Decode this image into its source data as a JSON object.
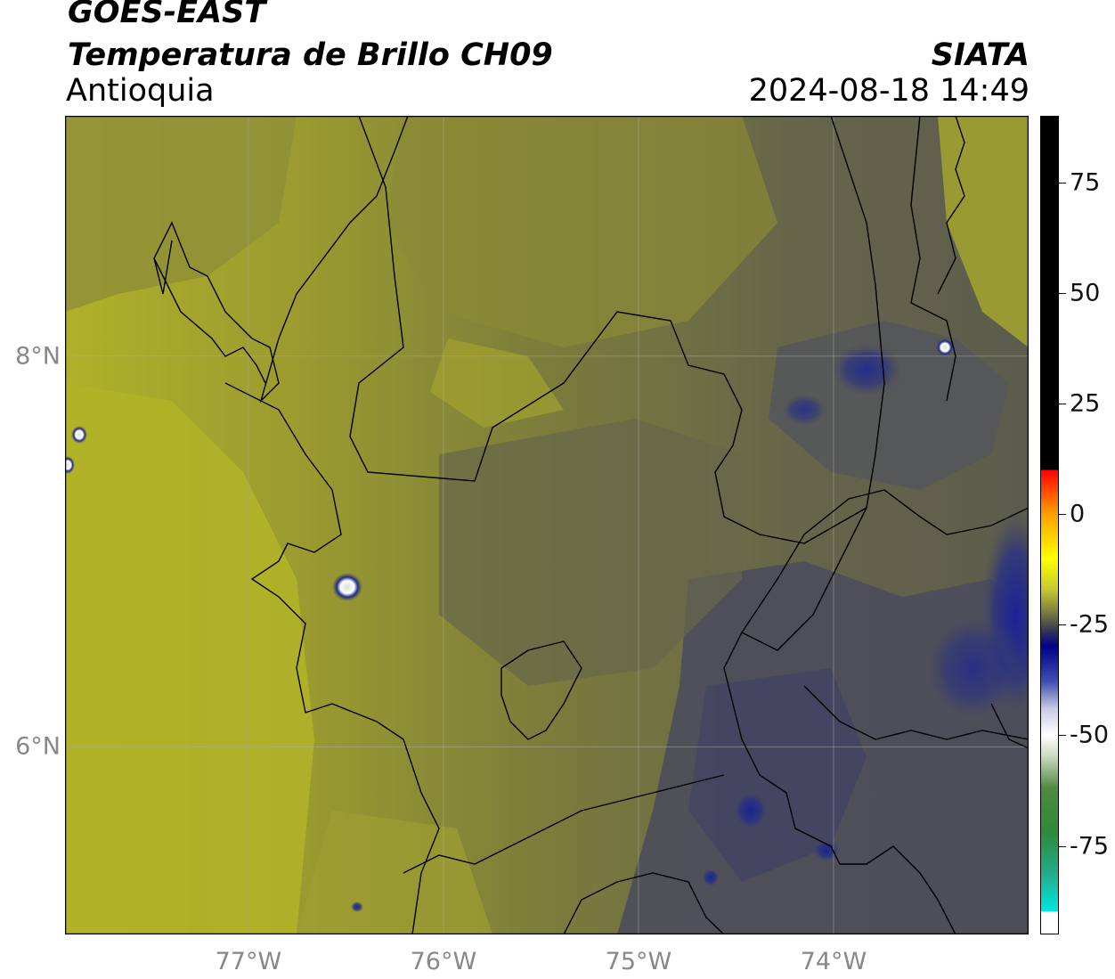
{
  "header": {
    "satellite": "GOES-EAST",
    "product": "Temperatura de Brillo CH09",
    "region": "Antioquia",
    "organization": "SIATA",
    "datetime": "2024-08-18 14:49"
  },
  "map": {
    "lon_range": [
      -77.94,
      -73.0
    ],
    "lat_range": [
      5.04,
      9.23
    ],
    "lat_ticks": [
      {
        "value": 8,
        "label": "8°N"
      },
      {
        "value": 6,
        "label": "6°N"
      }
    ],
    "lon_ticks": [
      {
        "value": -77,
        "label": "77°W"
      },
      {
        "value": -76,
        "label": "76°W"
      },
      {
        "value": -75,
        "label": "75°W"
      },
      {
        "value": -74,
        "label": "74°W"
      }
    ],
    "gridlines": true,
    "colors": {
      "bright_yellow": "#b4b426",
      "olive": "#8a8a3a",
      "dark_olive": "#5e5e4c",
      "slate": "#4a4b5c",
      "navy": "#1e2a8a",
      "border": "#000000"
    }
  },
  "colorbar": {
    "range": [
      -95,
      90
    ],
    "ticks": [
      {
        "value": 75,
        "label": "75"
      },
      {
        "value": 50,
        "label": "50"
      },
      {
        "value": 25,
        "label": "25"
      },
      {
        "value": 0,
        "label": "0"
      },
      {
        "value": -25,
        "label": "-25"
      },
      {
        "value": -50,
        "label": "-50"
      },
      {
        "value": -75,
        "label": "-75"
      }
    ]
  }
}
